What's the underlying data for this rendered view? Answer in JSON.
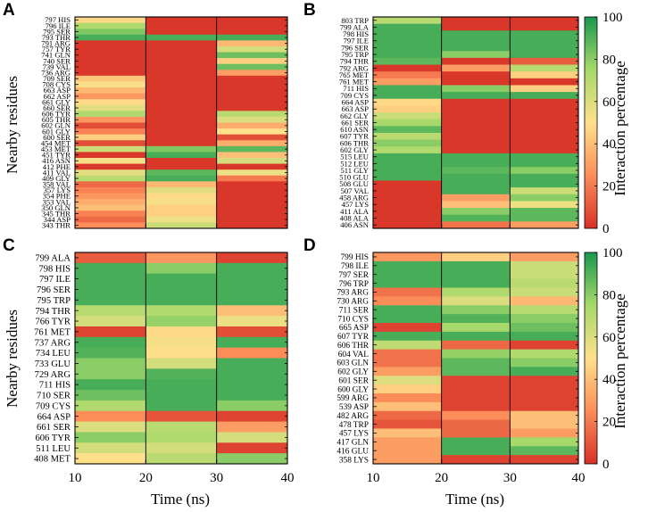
{
  "chart_data": [
    {
      "panel": "A",
      "type": "heatmap",
      "xlabel": "Time (ns)",
      "ylabel": "Nearby residues",
      "x_ticks": [
        10,
        20,
        30,
        40
      ],
      "x_bins": [
        "10-20",
        "20-30",
        "30-40"
      ],
      "residues": [
        "797 HIS",
        "796 ILE",
        "795 SER",
        "793 THR",
        "791 ARG",
        "757 TYR",
        "741 GLN",
        "740 SER",
        "739 VAL",
        "736 ARG",
        "709 SER",
        "708 CYS",
        "663 ASP",
        "662 ASP",
        "661 GLY",
        "660 SER",
        "606 TYR",
        "605 THR",
        "602 GLN",
        "601 GLY",
        "600 SER",
        "454 MET",
        "453 MET",
        "451 TYR",
        "416 ASN",
        "412 PHE",
        "411 VAL",
        "409 GLY",
        "358 VAL",
        "357 LYS",
        "354 PHE",
        "353 VAL",
        "350 GLN",
        "345 THR",
        "344 ASP",
        "343 THR"
      ],
      "values": [
        [
          48,
          2,
          2
        ],
        [
          72,
          2,
          2
        ],
        [
          82,
          2,
          2
        ],
        [
          92,
          92,
          92
        ],
        [
          2,
          2,
          38
        ],
        [
          2,
          2,
          62
        ],
        [
          2,
          2,
          85
        ],
        [
          2,
          2,
          45
        ],
        [
          2,
          2,
          85
        ],
        [
          2,
          2,
          30
        ],
        [
          42,
          2,
          2
        ],
        [
          52,
          2,
          2
        ],
        [
          38,
          2,
          2
        ],
        [
          28,
          2,
          2
        ],
        [
          48,
          2,
          2
        ],
        [
          58,
          2,
          2
        ],
        [
          72,
          2,
          70
        ],
        [
          28,
          2,
          60
        ],
        [
          8,
          2,
          35
        ],
        [
          22,
          2,
          50
        ],
        [
          45,
          2,
          8
        ],
        [
          8,
          2,
          35
        ],
        [
          65,
          82,
          88
        ],
        [
          2,
          92,
          40
        ],
        [
          52,
          2,
          62
        ],
        [
          2,
          2,
          2
        ],
        [
          58,
          88,
          55
        ],
        [
          70,
          92,
          20
        ],
        [
          15,
          38,
          2
        ],
        [
          22,
          58,
          2
        ],
        [
          28,
          48,
          2
        ],
        [
          35,
          52,
          2
        ],
        [
          40,
          45,
          2
        ],
        [
          22,
          45,
          2
        ],
        [
          15,
          55,
          2
        ],
        [
          25,
          65,
          2
        ]
      ],
      "colorbar": null
    },
    {
      "panel": "B",
      "type": "heatmap",
      "xlabel": "",
      "ylabel": "",
      "x_ticks": [
        10,
        20,
        30,
        40
      ],
      "x_bins": [
        "10-20",
        "20-30",
        "30-40"
      ],
      "residues": [
        "803 TRP",
        "799 ALA",
        "798 HIS",
        "797 ILE",
        "796 SER",
        "795 TRP",
        "794 THR",
        "792 ARG",
        "765 MET",
        "761 MET",
        "711 HIS",
        "709 CYS",
        "664 ASP",
        "663 ASP",
        "662 GLY",
        "661 SER",
        "610 ASN",
        "607 TYR",
        "606 THR",
        "602 GLY",
        "515 LEU",
        "512 LEU",
        "511 GLY",
        "510 GLU",
        "508 GLU",
        "507 VAL",
        "458 ARG",
        "457 LYS",
        "411 ALA",
        "408 ALA",
        "406 ASN"
      ],
      "values": [
        [
          70,
          2,
          2
        ],
        [
          92,
          2,
          2
        ],
        [
          92,
          92,
          92
        ],
        [
          92,
          92,
          92
        ],
        [
          92,
          92,
          92
        ],
        [
          92,
          80,
          92
        ],
        [
          88,
          2,
          12
        ],
        [
          2,
          30,
          70
        ],
        [
          20,
          2,
          45
        ],
        [
          30,
          2,
          2
        ],
        [
          92,
          80,
          45
        ],
        [
          92,
          92,
          92
        ],
        [
          48,
          2,
          2
        ],
        [
          45,
          2,
          2
        ],
        [
          65,
          2,
          2
        ],
        [
          75,
          2,
          2
        ],
        [
          88,
          2,
          2
        ],
        [
          70,
          2,
          2
        ],
        [
          80,
          2,
          2
        ],
        [
          72,
          2,
          2
        ],
        [
          92,
          92,
          92
        ],
        [
          92,
          92,
          92
        ],
        [
          92,
          88,
          80
        ],
        [
          92,
          92,
          92
        ],
        [
          2,
          92,
          92
        ],
        [
          2,
          92,
          65
        ],
        [
          2,
          30,
          80
        ],
        [
          2,
          40,
          55
        ],
        [
          2,
          80,
          88
        ],
        [
          2,
          90,
          88
        ],
        [
          2,
          18,
          30
        ]
      ],
      "colorbar": {
        "label": "Interaction percentage",
        "ticks": [
          0,
          20,
          40,
          60,
          80,
          100
        ]
      }
    },
    {
      "panel": "C",
      "type": "heatmap",
      "xlabel": "Time (ns)",
      "ylabel": "Nearby residues",
      "x_ticks": [
        10,
        20,
        30,
        40
      ],
      "x_bins": [
        "10-20",
        "20-30",
        "30-40"
      ],
      "residues": [
        "799 ALA",
        "798 HIS",
        "797 ILE",
        "796 SER",
        "795 TRP",
        "794 THR",
        "766 TYR",
        "761 MET",
        "737 ARG",
        "734 LEU",
        "733 GLU",
        "729 ARG",
        "711 HIS",
        "710 SER",
        "709 CYS",
        "664 ASP",
        "661 SER",
        "606 TYR",
        "511 LEU",
        "408 MET"
      ],
      "values": [
        [
          12,
          28,
          5
        ],
        [
          92,
          80,
          92
        ],
        [
          92,
          92,
          92
        ],
        [
          92,
          92,
          92
        ],
        [
          92,
          92,
          92
        ],
        [
          70,
          72,
          40
        ],
        [
          62,
          78,
          55
        ],
        [
          5,
          48,
          8
        ],
        [
          92,
          52,
          92
        ],
        [
          90,
          50,
          25
        ],
        [
          80,
          62,
          92
        ],
        [
          80,
          90,
          92
        ],
        [
          92,
          92,
          92
        ],
        [
          85,
          92,
          92
        ],
        [
          72,
          92,
          80
        ],
        [
          25,
          10,
          5
        ],
        [
          60,
          70,
          30
        ],
        [
          80,
          72,
          62
        ],
        [
          62,
          62,
          5
        ],
        [
          50,
          70,
          80
        ]
      ],
      "colorbar": null
    },
    {
      "panel": "D",
      "type": "heatmap",
      "xlabel": "Time (ns)",
      "ylabel": "",
      "x_ticks": [
        10,
        20,
        30,
        40
      ],
      "x_bins": [
        "10-20",
        "20-30",
        "30-40"
      ],
      "residues": [
        "799 HIS",
        "798 ILE",
        "797 SER",
        "796 TRP",
        "793 ARG",
        "730 ARG",
        "711 SER",
        "710 CYS",
        "665 ASP",
        "607 TYR",
        "606 THR",
        "604 VAL",
        "603 GLN",
        "602 GLY",
        "601 SER",
        "600 GLY",
        "599 ARG",
        "539 ASP",
        "482 ARG",
        "478 TRP",
        "457 LYS",
        "417 GLN",
        "416 GLU",
        "358 LYS"
      ],
      "values": [
        [
          28,
          45,
          30
        ],
        [
          92,
          92,
          65
        ],
        [
          92,
          92,
          65
        ],
        [
          92,
          92,
          70
        ],
        [
          18,
          72,
          65
        ],
        [
          25,
          60,
          38
        ],
        [
          92,
          80,
          70
        ],
        [
          92,
          90,
          80
        ],
        [
          5,
          75,
          85
        ],
        [
          92,
          92,
          92
        ],
        [
          68,
          15,
          5
        ],
        [
          18,
          78,
          72
        ],
        [
          18,
          88,
          80
        ],
        [
          30,
          88,
          92
        ],
        [
          60,
          5,
          5
        ],
        [
          45,
          5,
          5
        ],
        [
          25,
          5,
          5
        ],
        [
          40,
          5,
          5
        ],
        [
          15,
          25,
          40
        ],
        [
          10,
          15,
          40
        ],
        [
          40,
          15,
          30
        ],
        [
          30,
          92,
          75
        ],
        [
          30,
          92,
          88
        ],
        [
          30,
          5,
          5
        ]
      ],
      "colorbar": {
        "label": "Interaction percentage",
        "ticks": [
          0,
          20,
          40,
          60,
          80,
          100
        ]
      }
    }
  ]
}
